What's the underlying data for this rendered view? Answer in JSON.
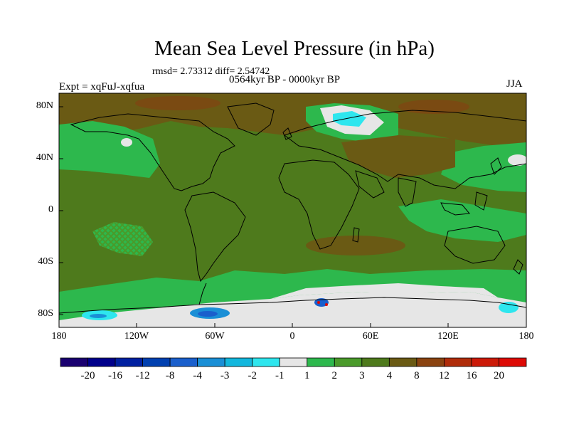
{
  "title": "Mean Sea Level Pressure (in hPa)",
  "stats": "rmsd= 2.73312 diff= 2.54742",
  "period": "0564kyr BP - 0000kyr BP",
  "experiment": "Expt = xqFuJ-xqfua",
  "season": "JJA",
  "lat_labels": [
    "80N",
    "40N",
    "0",
    "40S",
    "80S"
  ],
  "lon_labels": [
    "180",
    "120W",
    "60W",
    "0",
    "60E",
    "120E",
    "180"
  ],
  "colorbar": {
    "labels": [
      "-20",
      "-16",
      "-12",
      "-8",
      "-4",
      "-3",
      "-2",
      "-1",
      "1",
      "2",
      "3",
      "4",
      "8",
      "12",
      "16",
      "20"
    ],
    "colors": [
      "#1a0070",
      "#00008b",
      "#0020a0",
      "#0040b0",
      "#1a5fcc",
      "#1a8fd6",
      "#12b7dd",
      "#2ee6ee",
      "#e6e6e6",
      "#2db84d",
      "#4a9a2a",
      "#4e7a1c",
      "#6a5a14",
      "#8a4310",
      "#b02c0a",
      "#cc1a08",
      "#dd0a05"
    ]
  },
  "colors": {
    "background": "#ffffff",
    "coast": "#000000"
  }
}
